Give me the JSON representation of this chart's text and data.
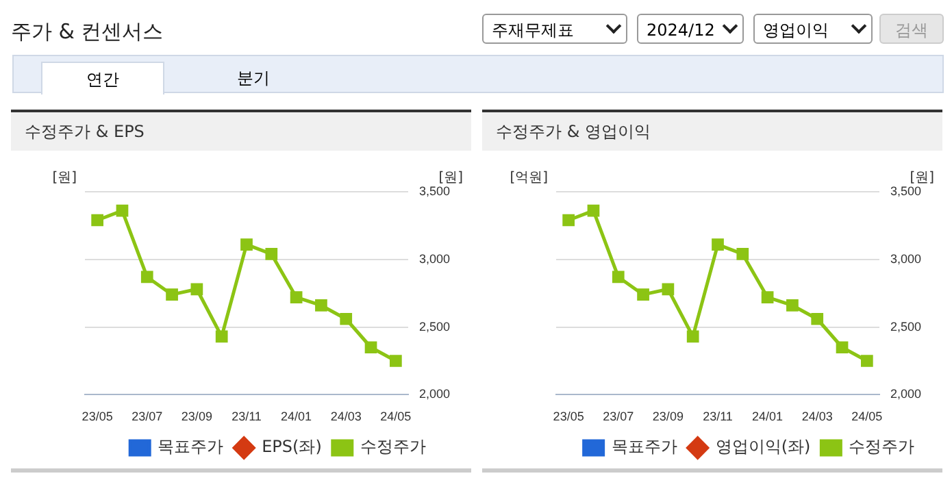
{
  "chart_data": [
    {
      "type": "other",
      "title": "주가 & 컨센서스",
      "annotations": [
        "주재무제표",
        "2024/12",
        "영업이익",
        "검색",
        "연간",
        "분기"
      ]
    },
    {
      "type": "line",
      "title": "수정주가 & EPS",
      "ylabel": "[원]",
      "y2label": "[원]",
      "categories": [
        "23/05",
        null,
        "23/07",
        null,
        "23/09",
        null,
        "23/11",
        null,
        "24/01",
        null,
        "24/03",
        null,
        "24/05"
      ],
      "series": [
        {
          "name": "목표주가",
          "type": "bar",
          "color": "#2268d8",
          "values": [
            null,
            null,
            null,
            null,
            null,
            null,
            null,
            null,
            null,
            null,
            null,
            null,
            null
          ]
        },
        {
          "name": "EPS(좌)",
          "type": "line",
          "color": "#d43a12",
          "marker": "diamond",
          "values": [
            null,
            null,
            null,
            null,
            null,
            null,
            null,
            null,
            null,
            null,
            null,
            null,
            null
          ]
        },
        {
          "name": "수정주가",
          "type": "line",
          "color": "#8cc414",
          "marker": "square",
          "axis": "y2",
          "values": [
            3290,
            3360,
            2870,
            2740,
            2780,
            2430,
            3110,
            3040,
            2720,
            2660,
            2560,
            2350,
            2250
          ]
        }
      ],
      "y2lim": [
        2000,
        3500
      ],
      "y2ticks": [
        {
          "value": 2000,
          "label": "2,000"
        },
        {
          "value": 2500,
          "label": "2,500"
        },
        {
          "value": 3000,
          "label": "3,000"
        },
        {
          "value": 3500,
          "label": "3,500"
        }
      ],
      "grid": "y",
      "legend": "bottom"
    },
    {
      "type": "line",
      "title": "수정주가 & 영업이익",
      "ylabel": "[억원]",
      "y2label": "[원]",
      "categories": [
        "23/05",
        null,
        "23/07",
        null,
        "23/09",
        null,
        "23/11",
        null,
        "24/01",
        null,
        "24/03",
        null,
        "24/05"
      ],
      "series": [
        {
          "name": "목표주가",
          "type": "bar",
          "color": "#2268d8",
          "values": [
            null,
            null,
            null,
            null,
            null,
            null,
            null,
            null,
            null,
            null,
            null,
            null,
            null
          ]
        },
        {
          "name": "영업이익(좌)",
          "type": "line",
          "color": "#d43a12",
          "marker": "diamond",
          "values": [
            null,
            null,
            null,
            null,
            null,
            null,
            null,
            null,
            null,
            null,
            null,
            null,
            null
          ]
        },
        {
          "name": "수정주가",
          "type": "line",
          "color": "#8cc414",
          "marker": "square",
          "axis": "y2",
          "values": [
            3290,
            3360,
            2870,
            2740,
            2780,
            2430,
            3110,
            3040,
            2720,
            2660,
            2560,
            2350,
            2250
          ]
        }
      ],
      "y2lim": [
        2000,
        3500
      ],
      "y2ticks": [
        {
          "value": 2000,
          "label": "2,000"
        },
        {
          "value": 2500,
          "label": "2,500"
        },
        {
          "value": 3000,
          "label": "3,000"
        },
        {
          "value": 3500,
          "label": "3,500"
        }
      ],
      "grid": "y",
      "legend": "bottom"
    }
  ]
}
